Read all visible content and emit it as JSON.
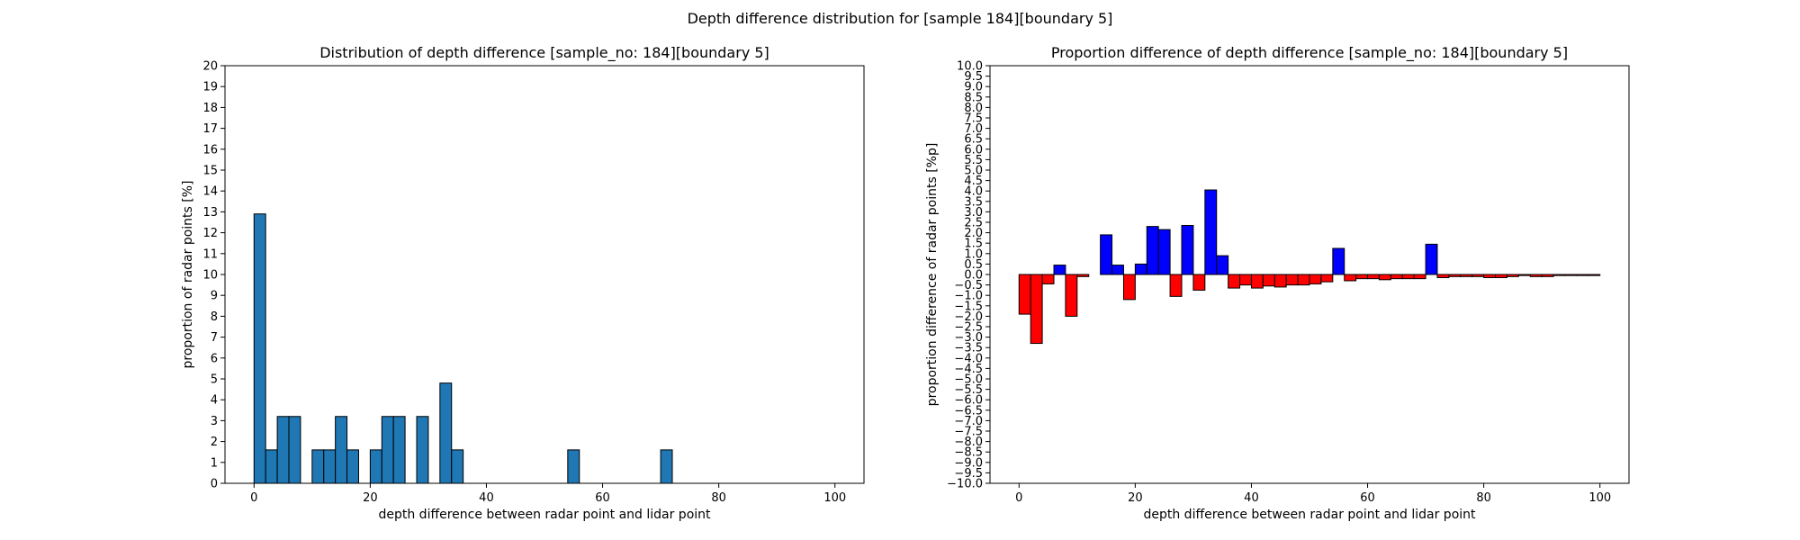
{
  "figure": {
    "suptitle": "Depth difference distribution for [sample 184][boundary 5]"
  },
  "chart_data": [
    {
      "type": "bar",
      "title": "Distribution of depth difference [sample_no: 184][boundary 5]",
      "xlabel": "depth difference between radar point and lidar point",
      "ylabel": "proportion of radar points [%]",
      "xlim": [
        -5,
        105
      ],
      "ylim": [
        0,
        20
      ],
      "xticks": [
        0,
        20,
        40,
        60,
        80,
        100
      ],
      "yticks": [
        0,
        1,
        2,
        3,
        4,
        5,
        6,
        7,
        8,
        9,
        10,
        11,
        12,
        13,
        14,
        15,
        16,
        17,
        18,
        19,
        20
      ],
      "bin_width": 2,
      "bar_color": "#1f77b4",
      "edge_color": "#000000",
      "x": [
        0,
        2,
        4,
        6,
        10,
        12,
        14,
        16,
        20,
        22,
        24,
        28,
        32,
        34,
        54,
        70
      ],
      "values": [
        12.9,
        1.6,
        3.2,
        3.2,
        1.6,
        1.6,
        3.2,
        1.6,
        1.6,
        3.2,
        3.2,
        3.2,
        4.8,
        1.6,
        1.6,
        1.6
      ]
    },
    {
      "type": "bar",
      "title": "Proportion difference of depth difference [sample_no: 184][boundary 5]",
      "xlabel": "depth difference between radar point and lidar point",
      "ylabel": "proportion difference of radar points [%p]",
      "xlim": [
        -5,
        105
      ],
      "ylim": [
        -10,
        10
      ],
      "xticks": [
        0,
        20,
        40,
        60,
        80,
        100
      ],
      "ytick_step": 0.5,
      "bin_width": 2,
      "positive_color": "#0000ff",
      "negative_color": "#ff0000",
      "edge_color": "#000000",
      "x": [
        0,
        2,
        4,
        6,
        8,
        10,
        14,
        16,
        18,
        20,
        22,
        24,
        26,
        28,
        30,
        32,
        34,
        36,
        38,
        40,
        42,
        44,
        46,
        48,
        50,
        52,
        54,
        56,
        58,
        60,
        62,
        64,
        66,
        68,
        70,
        72,
        74,
        76,
        78,
        80,
        82,
        84,
        86,
        88,
        90,
        92,
        94,
        96,
        98
      ],
      "values": [
        -1.9,
        -3.3,
        -0.45,
        0.45,
        -2.0,
        -0.1,
        1.9,
        0.45,
        -1.2,
        0.5,
        2.3,
        2.15,
        -1.05,
        2.35,
        -0.75,
        4.05,
        0.9,
        -0.65,
        -0.5,
        -0.65,
        -0.55,
        -0.6,
        -0.5,
        -0.5,
        -0.45,
        -0.35,
        1.25,
        -0.3,
        -0.2,
        -0.2,
        -0.25,
        -0.2,
        -0.2,
        -0.2,
        1.45,
        -0.15,
        -0.1,
        -0.1,
        -0.1,
        -0.15,
        -0.15,
        -0.1,
        -0.05,
        -0.1,
        -0.1,
        -0.05,
        -0.05,
        -0.05,
        -0.05
      ]
    }
  ]
}
